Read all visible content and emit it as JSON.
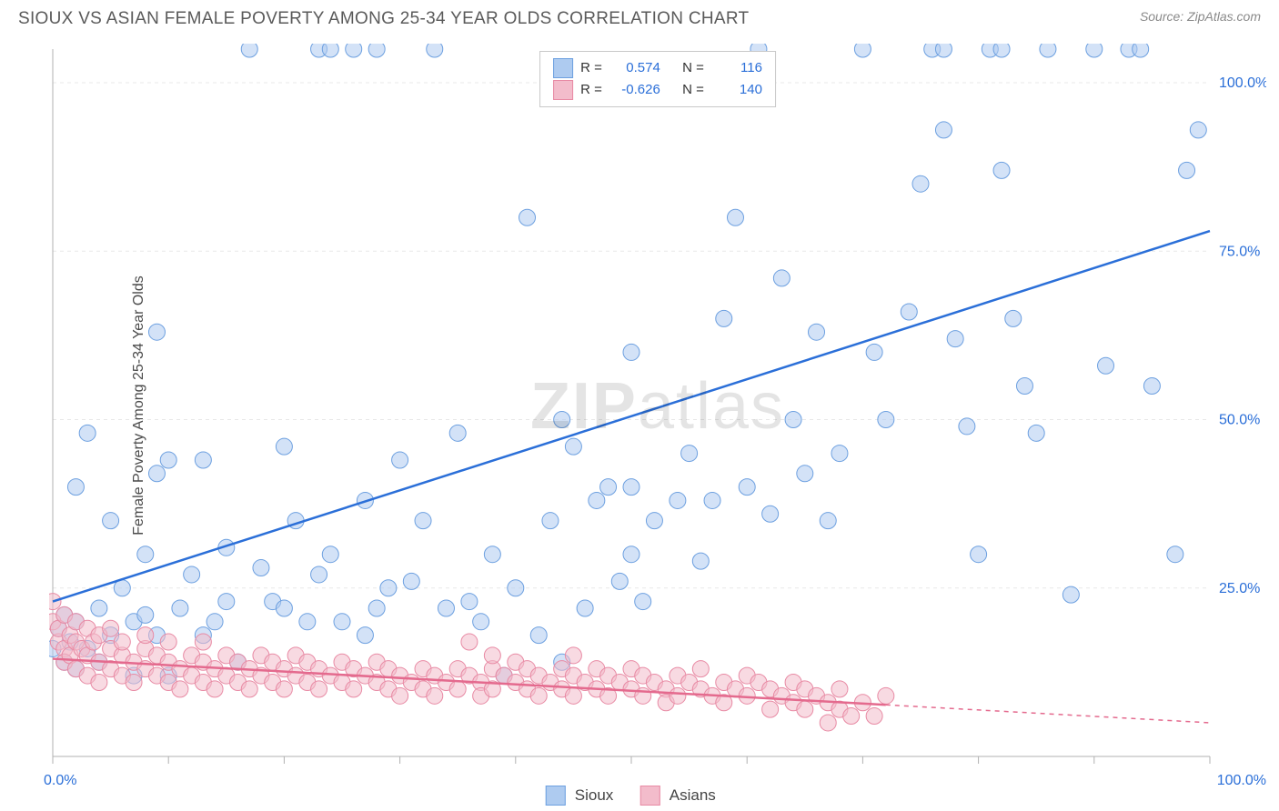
{
  "header": {
    "title": "SIOUX VS ASIAN FEMALE POVERTY AMONG 25-34 YEAR OLDS CORRELATION CHART",
    "source": "Source: ZipAtlas.com"
  },
  "y_axis_label": "Female Poverty Among 25-34 Year Olds",
  "watermark": {
    "bold": "ZIP",
    "rest": "atlas"
  },
  "chart": {
    "type": "scatter",
    "background_color": "#ffffff",
    "grid_color": "#e8e8e8",
    "grid_dash": "4,4",
    "tick_color": "#b0b0b0",
    "axis_label_color": "#2b6fd8",
    "xlim": [
      0,
      100
    ],
    "ylim": [
      0,
      105
    ],
    "x_tick_positions": [
      0,
      10,
      20,
      30,
      40,
      50,
      60,
      70,
      80,
      90,
      100
    ],
    "y_grid_positions": [
      25,
      50,
      75,
      100
    ],
    "x_axis_tick_labels": {
      "0": "0.0%",
      "100": "100.0%"
    },
    "y_axis_tick_labels": {
      "25": "25.0%",
      "50": "50.0%",
      "75": "75.0%",
      "100": "100.0%"
    },
    "marker_radius": 9,
    "marker_opacity": 0.55,
    "line_width": 2.5,
    "series": [
      {
        "name": "Sioux",
        "color_fill": "#aecbf0",
        "color_stroke": "#6da0e0",
        "line_color": "#2b6fd8",
        "R": "0.574",
        "N": "116",
        "trend": {
          "x1": 0,
          "y1": 23,
          "x2": 100,
          "y2": 78,
          "solid_until_x": 100
        },
        "points": [
          [
            0,
            16
          ],
          [
            0.5,
            19
          ],
          [
            1,
            14
          ],
          [
            1,
            21
          ],
          [
            1.5,
            17
          ],
          [
            2,
            13
          ],
          [
            2,
            20
          ],
          [
            2,
            40
          ],
          [
            3,
            16
          ],
          [
            3,
            48
          ],
          [
            4,
            14
          ],
          [
            4,
            22
          ],
          [
            5,
            18
          ],
          [
            5,
            35
          ],
          [
            6,
            25
          ],
          [
            7,
            20
          ],
          [
            7,
            12
          ],
          [
            8,
            21
          ],
          [
            8,
            30
          ],
          [
            9,
            18
          ],
          [
            9,
            42
          ],
          [
            9,
            63
          ],
          [
            10,
            12
          ],
          [
            10,
            44
          ],
          [
            11,
            22
          ],
          [
            12,
            27
          ],
          [
            13,
            18
          ],
          [
            13,
            44
          ],
          [
            14,
            20
          ],
          [
            15,
            23
          ],
          [
            15,
            31
          ],
          [
            16,
            14
          ],
          [
            17,
            105
          ],
          [
            18,
            28
          ],
          [
            19,
            23
          ],
          [
            20,
            22
          ],
          [
            20,
            46
          ],
          [
            21,
            35
          ],
          [
            22,
            20
          ],
          [
            23,
            27
          ],
          [
            23,
            105
          ],
          [
            24,
            30
          ],
          [
            24,
            105
          ],
          [
            25,
            20
          ],
          [
            26,
            105
          ],
          [
            27,
            18
          ],
          [
            27,
            38
          ],
          [
            28,
            22
          ],
          [
            28,
            105
          ],
          [
            29,
            25
          ],
          [
            30,
            44
          ],
          [
            31,
            26
          ],
          [
            32,
            35
          ],
          [
            33,
            105
          ],
          [
            34,
            22
          ],
          [
            35,
            48
          ],
          [
            36,
            23
          ],
          [
            37,
            20
          ],
          [
            38,
            30
          ],
          [
            39,
            12
          ],
          [
            40,
            25
          ],
          [
            41,
            80
          ],
          [
            42,
            18
          ],
          [
            43,
            35
          ],
          [
            44,
            14
          ],
          [
            44,
            50
          ],
          [
            45,
            46
          ],
          [
            46,
            22
          ],
          [
            47,
            38
          ],
          [
            48,
            40
          ],
          [
            49,
            26
          ],
          [
            50,
            30
          ],
          [
            50,
            40
          ],
          [
            50,
            60
          ],
          [
            51,
            23
          ],
          [
            52,
            35
          ],
          [
            54,
            38
          ],
          [
            55,
            45
          ],
          [
            56,
            29
          ],
          [
            57,
            38
          ],
          [
            58,
            65
          ],
          [
            59,
            80
          ],
          [
            60,
            40
          ],
          [
            61,
            105
          ],
          [
            62,
            36
          ],
          [
            63,
            71
          ],
          [
            64,
            50
          ],
          [
            65,
            42
          ],
          [
            66,
            63
          ],
          [
            67,
            35
          ],
          [
            68,
            45
          ],
          [
            70,
            105
          ],
          [
            71,
            60
          ],
          [
            72,
            50
          ],
          [
            74,
            66
          ],
          [
            75,
            85
          ],
          [
            76,
            105
          ],
          [
            77,
            105
          ],
          [
            77,
            93
          ],
          [
            78,
            62
          ],
          [
            79,
            49
          ],
          [
            80,
            30
          ],
          [
            81,
            105
          ],
          [
            82,
            87
          ],
          [
            82,
            105
          ],
          [
            83,
            65
          ],
          [
            84,
            55
          ],
          [
            85,
            48
          ],
          [
            86,
            105
          ],
          [
            88,
            24
          ],
          [
            90,
            105
          ],
          [
            91,
            58
          ],
          [
            93,
            105
          ],
          [
            94,
            105
          ],
          [
            95,
            55
          ],
          [
            97,
            30
          ],
          [
            98,
            87
          ],
          [
            99,
            93
          ]
        ]
      },
      {
        "name": "Asians",
        "color_fill": "#f3bccb",
        "color_stroke": "#e88aa4",
        "line_color": "#e46a8e",
        "R": "-0.626",
        "N": "140",
        "trend": {
          "x1": 0,
          "y1": 14.5,
          "x2": 100,
          "y2": 5,
          "solid_until_x": 72
        },
        "points": [
          [
            0,
            23
          ],
          [
            0,
            20
          ],
          [
            0.5,
            17
          ],
          [
            0.5,
            19
          ],
          [
            1,
            21
          ],
          [
            1,
            16
          ],
          [
            1,
            14
          ],
          [
            1.5,
            18
          ],
          [
            1.5,
            15
          ],
          [
            2,
            20
          ],
          [
            2,
            17
          ],
          [
            2,
            13
          ],
          [
            2.5,
            16
          ],
          [
            3,
            19
          ],
          [
            3,
            15
          ],
          [
            3,
            12
          ],
          [
            3.5,
            17
          ],
          [
            4,
            14
          ],
          [
            4,
            18
          ],
          [
            4,
            11
          ],
          [
            5,
            16
          ],
          [
            5,
            13
          ],
          [
            5,
            19
          ],
          [
            6,
            15
          ],
          [
            6,
            12
          ],
          [
            6,
            17
          ],
          [
            7,
            14
          ],
          [
            7,
            11
          ],
          [
            8,
            16
          ],
          [
            8,
            13
          ],
          [
            8,
            18
          ],
          [
            9,
            12
          ],
          [
            9,
            15
          ],
          [
            10,
            14
          ],
          [
            10,
            11
          ],
          [
            10,
            17
          ],
          [
            11,
            13
          ],
          [
            11,
            10
          ],
          [
            12,
            15
          ],
          [
            12,
            12
          ],
          [
            13,
            14
          ],
          [
            13,
            11
          ],
          [
            13,
            17
          ],
          [
            14,
            13
          ],
          [
            14,
            10
          ],
          [
            15,
            12
          ],
          [
            15,
            15
          ],
          [
            16,
            11
          ],
          [
            16,
            14
          ],
          [
            17,
            13
          ],
          [
            17,
            10
          ],
          [
            18,
            12
          ],
          [
            18,
            15
          ],
          [
            19,
            11
          ],
          [
            19,
            14
          ],
          [
            20,
            13
          ],
          [
            20,
            10
          ],
          [
            21,
            12
          ],
          [
            21,
            15
          ],
          [
            22,
            11
          ],
          [
            22,
            14
          ],
          [
            23,
            13
          ],
          [
            23,
            10
          ],
          [
            24,
            12
          ],
          [
            25,
            11
          ],
          [
            25,
            14
          ],
          [
            26,
            13
          ],
          [
            26,
            10
          ],
          [
            27,
            12
          ],
          [
            28,
            11
          ],
          [
            28,
            14
          ],
          [
            29,
            13
          ],
          [
            29,
            10
          ],
          [
            30,
            12
          ],
          [
            30,
            9
          ],
          [
            31,
            11
          ],
          [
            32,
            13
          ],
          [
            32,
            10
          ],
          [
            33,
            12
          ],
          [
            33,
            9
          ],
          [
            34,
            11
          ],
          [
            35,
            13
          ],
          [
            35,
            10
          ],
          [
            36,
            12
          ],
          [
            36,
            17
          ],
          [
            37,
            11
          ],
          [
            37,
            9
          ],
          [
            38,
            13
          ],
          [
            38,
            10
          ],
          [
            38,
            15
          ],
          [
            39,
            12
          ],
          [
            40,
            11
          ],
          [
            40,
            14
          ],
          [
            41,
            10
          ],
          [
            41,
            13
          ],
          [
            42,
            12
          ],
          [
            42,
            9
          ],
          [
            43,
            11
          ],
          [
            44,
            13
          ],
          [
            44,
            10
          ],
          [
            45,
            12
          ],
          [
            45,
            9
          ],
          [
            45,
            15
          ],
          [
            46,
            11
          ],
          [
            47,
            10
          ],
          [
            47,
            13
          ],
          [
            48,
            12
          ],
          [
            48,
            9
          ],
          [
            49,
            11
          ],
          [
            50,
            10
          ],
          [
            50,
            13
          ],
          [
            51,
            12
          ],
          [
            51,
            9
          ],
          [
            52,
            11
          ],
          [
            53,
            10
          ],
          [
            53,
            8
          ],
          [
            54,
            12
          ],
          [
            54,
            9
          ],
          [
            55,
            11
          ],
          [
            56,
            10
          ],
          [
            56,
            13
          ],
          [
            57,
            9
          ],
          [
            58,
            11
          ],
          [
            58,
            8
          ],
          [
            59,
            10
          ],
          [
            60,
            12
          ],
          [
            60,
            9
          ],
          [
            61,
            11
          ],
          [
            62,
            10
          ],
          [
            62,
            7
          ],
          [
            63,
            9
          ],
          [
            64,
            8
          ],
          [
            64,
            11
          ],
          [
            65,
            10
          ],
          [
            65,
            7
          ],
          [
            66,
            9
          ],
          [
            67,
            8
          ],
          [
            67,
            5
          ],
          [
            68,
            7
          ],
          [
            68,
            10
          ],
          [
            69,
            6
          ],
          [
            70,
            8
          ],
          [
            71,
            6
          ],
          [
            72,
            9
          ]
        ]
      }
    ]
  },
  "legend": {
    "items": [
      {
        "label": "Sioux",
        "fill": "#aecbf0",
        "stroke": "#6da0e0"
      },
      {
        "label": "Asians",
        "fill": "#f3bccb",
        "stroke": "#e88aa4"
      }
    ]
  }
}
